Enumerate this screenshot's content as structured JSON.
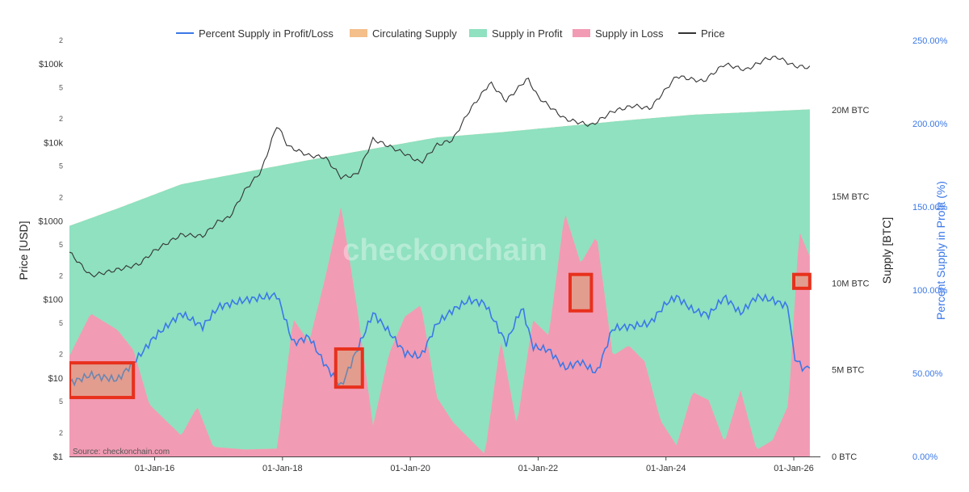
{
  "chart_data": {
    "type": "area",
    "watermark": "checkonchain",
    "source": "Source: checkonchain.com",
    "legend": {
      "placement": "top-center",
      "items": [
        {
          "name": "Percent Supply in Profit/Loss",
          "color": "#3b78e7",
          "kind": "line"
        },
        {
          "name": "Circulating Supply",
          "color": "#f4bf8a",
          "kind": "area"
        },
        {
          "name": "Supply in Profit",
          "color": "#8fe1c0",
          "kind": "area"
        },
        {
          "name": "Supply in Loss",
          "color": "#f29bb4",
          "kind": "area"
        },
        {
          "name": "Price",
          "color": "#333333",
          "kind": "line"
        }
      ]
    },
    "axes": {
      "x": {
        "range": [
          "2014-09",
          "2026-06"
        ],
        "ticks": [
          "01-Jan-16",
          "01-Jan-18",
          "01-Jan-20",
          "01-Jan-22",
          "01-Jan-24",
          "01-Jan-26"
        ]
      },
      "y_price": {
        "title": "Price [USD]",
        "scale": "log",
        "range": [
          1,
          200000
        ],
        "major_ticks": [
          {
            "value": 1,
            "label": "$1"
          },
          {
            "value": 10,
            "label": "$10"
          },
          {
            "value": 100,
            "label": "$100"
          },
          {
            "value": 1000,
            "label": "$1000"
          },
          {
            "value": 10000,
            "label": "$10k"
          },
          {
            "value": 100000,
            "label": "$100k"
          }
        ],
        "minor_labels": [
          "2",
          "5"
        ]
      },
      "y_supply": {
        "title": "Supply [BTC]",
        "range": [
          0,
          24000000
        ],
        "ticks": [
          {
            "value": 0,
            "label": "0 BTC"
          },
          {
            "value": 5000000,
            "label": "5M BTC"
          },
          {
            "value": 10000000,
            "label": "10M BTC"
          },
          {
            "value": 15000000,
            "label": "15M BTC"
          },
          {
            "value": 20000000,
            "label": "20M BTC"
          }
        ]
      },
      "y_percent": {
        "title": "Percent Supply in Profit (%)",
        "range": [
          0,
          250
        ],
        "ticks": [
          {
            "value": 0,
            "label": "0.00%"
          },
          {
            "value": 50,
            "label": "50.00%"
          },
          {
            "value": 100,
            "label": "100.00%"
          },
          {
            "value": 150,
            "label": "150.00%"
          },
          {
            "value": 200,
            "label": "200.00%"
          },
          {
            "value": 250,
            "label": "250.00%"
          }
        ]
      }
    },
    "series": [
      {
        "name": "Circulating Supply",
        "unit": "BTC",
        "x": [
          "2014-09",
          "2015-06",
          "2016-06",
          "2017-06",
          "2018-06",
          "2019-06",
          "2020-06",
          "2021-06",
          "2022-06",
          "2023-06",
          "2024-06",
          "2025-06",
          "2026-04"
        ],
        "values": [
          13300000,
          14300000,
          15700000,
          16400000,
          17100000,
          17750000,
          18400000,
          18700000,
          19050000,
          19400000,
          19710000,
          19880000,
          20020000
        ]
      },
      {
        "name": "Supply in Profit",
        "unit": "BTC",
        "x": [
          "2014-09",
          "2015-01",
          "2015-06",
          "2015-09",
          "2015-12",
          "2016-06",
          "2016-09",
          "2016-12",
          "2017-06",
          "2017-12",
          "2018-03",
          "2018-06",
          "2018-09",
          "2018-12",
          "2019-03",
          "2019-06",
          "2019-09",
          "2019-12",
          "2020-03",
          "2020-06",
          "2020-09",
          "2020-12",
          "2021-03",
          "2021-06",
          "2021-09",
          "2021-12",
          "2022-03",
          "2022-06",
          "2022-09",
          "2022-12",
          "2023-03",
          "2023-06",
          "2023-09",
          "2023-12",
          "2024-03",
          "2024-06",
          "2024-09",
          "2024-12",
          "2025-03",
          "2025-06",
          "2025-09",
          "2025-12",
          "2026-02",
          "2026-04"
        ],
        "values": [
          7500000,
          5500000,
          7000000,
          8500000,
          12000000,
          14500000,
          13000000,
          15500000,
          16000000,
          16300000,
          9000000,
          10500000,
          7000000,
          3000000,
          9000000,
          16000000,
          12000000,
          10000000,
          9500000,
          15000000,
          16500000,
          17500000,
          18500000,
          12000000,
          17000000,
          11000000,
          12000000,
          5000000,
          8000000,
          6500000,
          13500000,
          13000000,
          14000000,
          17500000,
          19000000,
          16000000,
          16500000,
          19000000,
          16000000,
          19500000,
          19000000,
          17000000,
          7000000,
          8500000
        ]
      },
      {
        "name": "Supply in Loss",
        "unit": "BTC",
        "derived_from": "Circulating Supply minus Supply in Profit"
      },
      {
        "name": "Price",
        "unit": "USD",
        "x": [
          "2014-09",
          "2015-01",
          "2015-06",
          "2015-10",
          "2016-01",
          "2016-06",
          "2016-10",
          "2017-01",
          "2017-03",
          "2017-06",
          "2017-09",
          "2017-12",
          "2018-02",
          "2018-06",
          "2018-09",
          "2018-12",
          "2019-03",
          "2019-06",
          "2019-09",
          "2019-12",
          "2020-03",
          "2020-06",
          "2020-09",
          "2020-12",
          "2021-04",
          "2021-07",
          "2021-11",
          "2022-01",
          "2022-06",
          "2022-11",
          "2023-03",
          "2023-07",
          "2023-10",
          "2024-03",
          "2024-08",
          "2024-12",
          "2025-04",
          "2025-08",
          "2025-10",
          "2026-01",
          "2026-04"
        ],
        "values": [
          400,
          200,
          240,
          280,
          420,
          670,
          640,
          1000,
          1100,
          2500,
          4300,
          17000,
          9000,
          6800,
          6500,
          3600,
          3900,
          11000,
          9000,
          7200,
          5500,
          9300,
          10800,
          25000,
          58000,
          34000,
          66000,
          38000,
          20000,
          16500,
          25000,
          29500,
          27000,
          70000,
          60000,
          100000,
          84000,
          118000,
          122000,
          95000,
          90000
        ]
      },
      {
        "name": "Percent Supply in Profit/Loss",
        "unit": "%",
        "x": [
          "2014-09",
          "2015-01",
          "2015-06",
          "2015-10",
          "2016-01",
          "2016-06",
          "2016-10",
          "2017-01",
          "2017-06",
          "2017-12",
          "2018-03",
          "2018-06",
          "2018-09",
          "2018-12",
          "2019-03",
          "2019-06",
          "2019-09",
          "2019-12",
          "2020-03",
          "2020-06",
          "2020-09",
          "2020-12",
          "2021-03",
          "2021-07",
          "2021-10",
          "2021-12",
          "2022-03",
          "2022-06",
          "2022-09",
          "2022-12",
          "2023-03",
          "2023-06",
          "2023-10",
          "2024-01",
          "2024-03",
          "2024-06",
          "2024-09",
          "2024-12",
          "2025-03",
          "2025-06",
          "2025-09",
          "2025-12",
          "2026-01",
          "2026-03",
          "2026-04"
        ],
        "values": [
          44,
          49,
          46,
          60,
          72,
          86,
          78,
          90,
          94,
          97,
          68,
          72,
          55,
          42,
          64,
          86,
          75,
          62,
          60,
          80,
          88,
          94,
          92,
          68,
          90,
          66,
          64,
          53,
          57,
          50,
          77,
          78,
          80,
          92,
          96,
          88,
          85,
          96,
          86,
          96,
          94,
          90,
          60,
          52,
          55
        ]
      }
    ],
    "highlight_boxes": [
      {
        "x_range": [
          "2014-09",
          "2015-09"
        ],
        "y_range_btc": [
          3400000,
          5400000
        ]
      },
      {
        "x_range": [
          "2018-11",
          "2019-04"
        ],
        "y_range_btc": [
          4000000,
          6200000
        ]
      },
      {
        "x_range": [
          "2022-07",
          "2022-11"
        ],
        "y_range_btc": [
          8400000,
          10500000
        ]
      },
      {
        "x_range": [
          "2026-01",
          "2026-04"
        ],
        "y_range_btc": [
          9700000,
          10500000
        ]
      }
    ]
  }
}
